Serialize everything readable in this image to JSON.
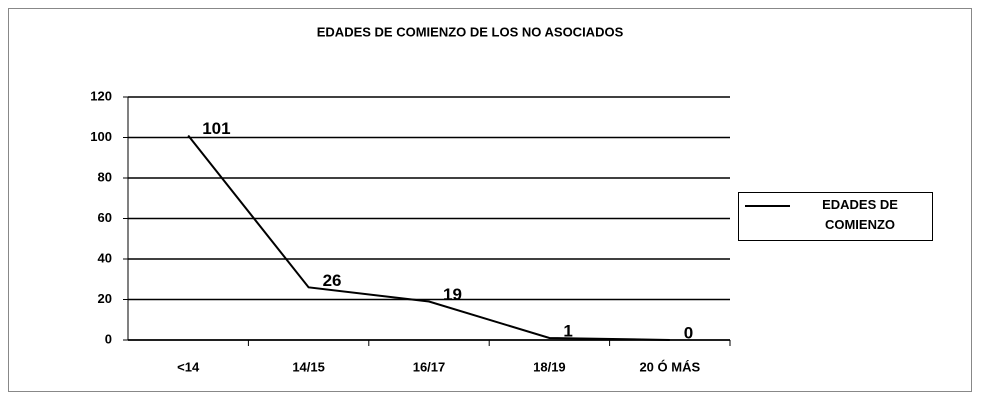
{
  "chart_data": {
    "type": "line",
    "title": "EDADES DE COMIENZO DE LOS NO ASOCIADOS",
    "categories": [
      "<14",
      "14/15",
      "16/17",
      "18/19",
      "20 Ó MÁS"
    ],
    "series": [
      {
        "name": "EDADES DE COMIENZO",
        "color": "#000000",
        "values": [
          101,
          26,
          19,
          1,
          0
        ]
      }
    ],
    "ylim": [
      0,
      120
    ],
    "yticks": [
      0,
      20,
      40,
      60,
      80,
      100,
      120
    ],
    "grid": true,
    "legend": "right"
  }
}
